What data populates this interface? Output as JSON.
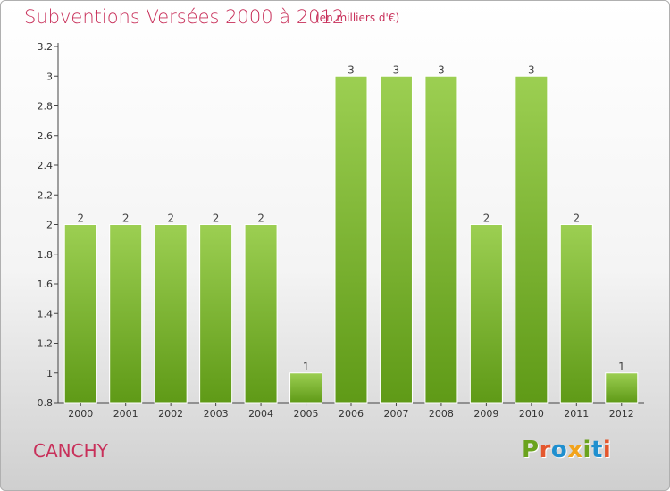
{
  "title": "Subventions Versées 2000 à 2012",
  "subtitle": "(en milliers d'€)",
  "commune": "CANCHY",
  "logo": {
    "text": "Proxiti"
  },
  "colors": {
    "title": "#c8305a",
    "bar_top": "#9ccf52",
    "bar_bottom": "#5f9a17",
    "bar_border": "#ffffff",
    "logo": [
      "#6aa31e",
      "#e4572e",
      "#1f8fcf",
      "#f2a31b",
      "#6aa31e",
      "#1f8fcf",
      "#e4572e"
    ]
  },
  "chart_data": {
    "type": "bar",
    "categories": [
      "2000",
      "2001",
      "2002",
      "2003",
      "2004",
      "2005",
      "2006",
      "2007",
      "2008",
      "2009",
      "2010",
      "2011",
      "2012"
    ],
    "values": [
      2,
      2,
      2,
      2,
      2,
      1,
      3,
      3,
      3,
      2,
      3,
      2,
      1
    ],
    "data_labels": [
      "2",
      "2",
      "2",
      "2",
      "2",
      "1",
      "3",
      "3",
      "3",
      "2",
      "3",
      "2",
      "1"
    ],
    "ylim": [
      0.8,
      3.2
    ],
    "yticks": [
      0.8,
      1,
      1.2,
      1.4,
      1.6,
      1.8,
      2,
      2.2,
      2.4,
      2.6,
      2.8,
      3,
      3.2
    ],
    "ytick_labels": [
      "0.8",
      "1",
      "1.2",
      "1.4",
      "1.6",
      "1.8",
      "2",
      "2.2",
      "2.4",
      "2.6",
      "2.8",
      "3",
      "3.2"
    ],
    "grid": false,
    "legend": "none"
  }
}
